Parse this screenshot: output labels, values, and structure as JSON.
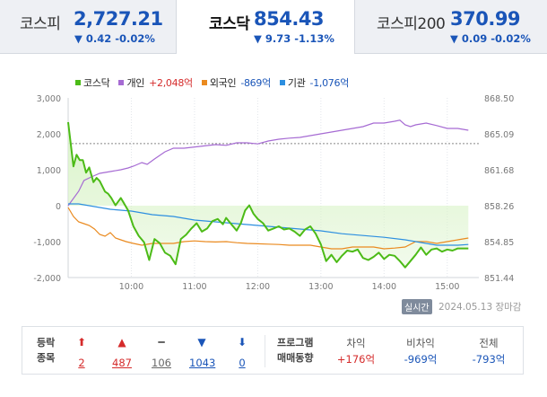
{
  "tabs": [
    {
      "name": "코스피",
      "value": "2,727.21",
      "change": "▼ 0.42 -0.02%",
      "active": false
    },
    {
      "name": "코스닥",
      "value": "854.43",
      "change": "▼ 9.73 -1.13%",
      "active": true
    },
    {
      "name": "코스피200",
      "value": "370.99",
      "change": "▼ 0.09 -0.02%",
      "active": false
    }
  ],
  "colors": {
    "down": "#1a55b8",
    "up": "#d52b2b",
    "kosdaq": "#4cbb17",
    "kosdaq_fill": "#d9f3c8",
    "individual": "#a66bd3",
    "foreign": "#ea8a1f",
    "institution": "#2d8fe0"
  },
  "legend": [
    {
      "label": "코스닥",
      "value": "",
      "color": "#4cbb17",
      "value_color": "#333"
    },
    {
      "label": "개인",
      "value": "+2,048억",
      "color": "#a66bd3",
      "value_color": "#d52b2b"
    },
    {
      "label": "외국인",
      "value": "-869억",
      "color": "#ea8a1f",
      "value_color": "#1a55b8"
    },
    {
      "label": "기관",
      "value": "-1,076억",
      "color": "#2d8fe0",
      "value_color": "#1a55b8"
    }
  ],
  "chart_data": {
    "type": "line",
    "x_ticks": [
      "10:00",
      "11:00",
      "12:00",
      "13:00",
      "14:00",
      "15:00"
    ],
    "x_tick_minutes": [
      60,
      120,
      180,
      240,
      300,
      360
    ],
    "x_range_minutes": [
      0,
      390
    ],
    "y_left_ticks": [
      "3,000",
      "2,000",
      "1,000",
      "0",
      "-1,000",
      "-2,000"
    ],
    "y_left_range": [
      -2000,
      3000
    ],
    "y_right_ticks": [
      "868.50",
      "865.09",
      "861.68",
      "858.26",
      "854.85",
      "851.44"
    ],
    "y_right_range": [
      851.44,
      868.5
    ],
    "reference_line": 864.16,
    "index_series": {
      "name": "코스닥",
      "axis": "right",
      "points": [
        [
          0,
          866.2
        ],
        [
          5,
          862.0
        ],
        [
          8,
          863.1
        ],
        [
          11,
          862.6
        ],
        [
          14,
          862.6
        ],
        [
          17,
          861.4
        ],
        [
          20,
          861.9
        ],
        [
          24,
          860.5
        ],
        [
          27,
          860.9
        ],
        [
          30,
          860.6
        ],
        [
          35,
          859.6
        ],
        [
          38,
          859.4
        ],
        [
          41,
          859.0
        ],
        [
          45,
          858.3
        ],
        [
          50,
          859.0
        ],
        [
          53,
          858.5
        ],
        [
          57,
          857.8
        ],
        [
          62,
          856.3
        ],
        [
          67,
          855.4
        ],
        [
          72,
          854.8
        ],
        [
          77,
          853.1
        ],
        [
          82,
          855.1
        ],
        [
          87,
          854.7
        ],
        [
          92,
          853.8
        ],
        [
          97,
          853.5
        ],
        [
          102,
          852.7
        ],
        [
          107,
          855.1
        ],
        [
          112,
          855.5
        ],
        [
          117,
          856.1
        ],
        [
          122,
          856.6
        ],
        [
          127,
          855.8
        ],
        [
          132,
          856.1
        ],
        [
          137,
          856.8
        ],
        [
          142,
          857.0
        ],
        [
          147,
          856.5
        ],
        [
          150,
          857.1
        ],
        [
          155,
          856.5
        ],
        [
          160,
          855.9
        ],
        [
          164,
          856.6
        ],
        [
          168,
          857.8
        ],
        [
          172,
          858.3
        ],
        [
          176,
          857.5
        ],
        [
          180,
          857.0
        ],
        [
          185,
          856.6
        ],
        [
          190,
          855.9
        ],
        [
          195,
          856.1
        ],
        [
          200,
          856.3
        ],
        [
          205,
          856.0
        ],
        [
          210,
          856.1
        ],
        [
          215,
          855.8
        ],
        [
          220,
          855.4
        ],
        [
          225,
          856.0
        ],
        [
          230,
          856.3
        ],
        [
          235,
          855.6
        ],
        [
          240,
          854.6
        ],
        [
          245,
          853.0
        ],
        [
          250,
          853.6
        ],
        [
          255,
          852.9
        ],
        [
          260,
          853.5
        ],
        [
          265,
          854.0
        ],
        [
          270,
          853.9
        ],
        [
          275,
          854.1
        ],
        [
          280,
          853.3
        ],
        [
          285,
          853.1
        ],
        [
          290,
          853.4
        ],
        [
          295,
          853.8
        ],
        [
          300,
          853.2
        ],
        [
          305,
          853.6
        ],
        [
          310,
          853.5
        ],
        [
          315,
          853.0
        ],
        [
          320,
          852.4
        ],
        [
          325,
          853.0
        ],
        [
          330,
          853.6
        ],
        [
          335,
          854.3
        ],
        [
          340,
          853.6
        ],
        [
          345,
          854.1
        ],
        [
          350,
          854.2
        ],
        [
          355,
          853.9
        ],
        [
          360,
          854.1
        ],
        [
          365,
          854.0
        ],
        [
          370,
          854.2
        ],
        [
          375,
          854.2
        ],
        [
          380,
          854.2
        ]
      ]
    },
    "series": [
      {
        "name": "개인",
        "axis": "left",
        "points": [
          [
            0,
            0
          ],
          [
            10,
            400
          ],
          [
            15,
            700
          ],
          [
            22,
            800
          ],
          [
            30,
            900
          ],
          [
            40,
            950
          ],
          [
            50,
            1000
          ],
          [
            57,
            1050
          ],
          [
            62,
            1100
          ],
          [
            70,
            1200
          ],
          [
            75,
            1150
          ],
          [
            82,
            1300
          ],
          [
            92,
            1500
          ],
          [
            100,
            1600
          ],
          [
            110,
            1600
          ],
          [
            125,
            1650
          ],
          [
            140,
            1700
          ],
          [
            150,
            1680
          ],
          [
            160,
            1750
          ],
          [
            170,
            1750
          ],
          [
            180,
            1720
          ],
          [
            190,
            1800
          ],
          [
            200,
            1850
          ],
          [
            210,
            1880
          ],
          [
            220,
            1900
          ],
          [
            230,
            1950
          ],
          [
            240,
            2000
          ],
          [
            250,
            2050
          ],
          [
            260,
            2100
          ],
          [
            270,
            2150
          ],
          [
            280,
            2200
          ],
          [
            290,
            2300
          ],
          [
            300,
            2300
          ],
          [
            310,
            2350
          ],
          [
            315,
            2380
          ],
          [
            320,
            2250
          ],
          [
            325,
            2200
          ],
          [
            330,
            2250
          ],
          [
            340,
            2300
          ],
          [
            350,
            2230
          ],
          [
            360,
            2150
          ],
          [
            370,
            2150
          ],
          [
            380,
            2100
          ]
        ]
      },
      {
        "name": "외국인",
        "axis": "left",
        "points": [
          [
            0,
            -50
          ],
          [
            5,
            -300
          ],
          [
            10,
            -450
          ],
          [
            15,
            -500
          ],
          [
            20,
            -550
          ],
          [
            25,
            -650
          ],
          [
            30,
            -800
          ],
          [
            35,
            -850
          ],
          [
            40,
            -750
          ],
          [
            45,
            -900
          ],
          [
            50,
            -950
          ],
          [
            55,
            -1000
          ],
          [
            62,
            -1050
          ],
          [
            70,
            -1100
          ],
          [
            80,
            -1050
          ],
          [
            90,
            -1050
          ],
          [
            100,
            -1050
          ],
          [
            110,
            -1000
          ],
          [
            120,
            -980
          ],
          [
            130,
            -1000
          ],
          [
            140,
            -1010
          ],
          [
            150,
            -1000
          ],
          [
            160,
            -1030
          ],
          [
            170,
            -1050
          ],
          [
            180,
            -1060
          ],
          [
            190,
            -1070
          ],
          [
            200,
            -1080
          ],
          [
            210,
            -1100
          ],
          [
            220,
            -1100
          ],
          [
            230,
            -1100
          ],
          [
            240,
            -1150
          ],
          [
            250,
            -1200
          ],
          [
            260,
            -1200
          ],
          [
            270,
            -1150
          ],
          [
            280,
            -1150
          ],
          [
            290,
            -1150
          ],
          [
            300,
            -1200
          ],
          [
            310,
            -1180
          ],
          [
            320,
            -1150
          ],
          [
            330,
            -1000
          ],
          [
            340,
            -1000
          ],
          [
            350,
            -1050
          ],
          [
            360,
            -1000
          ],
          [
            370,
            -950
          ],
          [
            380,
            -900
          ]
        ]
      },
      {
        "name": "기관",
        "axis": "left",
        "points": [
          [
            0,
            50
          ],
          [
            10,
            50
          ],
          [
            20,
            0
          ],
          [
            40,
            -100
          ],
          [
            60,
            -150
          ],
          [
            80,
            -250
          ],
          [
            100,
            -300
          ],
          [
            120,
            -400
          ],
          [
            140,
            -450
          ],
          [
            160,
            -500
          ],
          [
            180,
            -550
          ],
          [
            200,
            -600
          ],
          [
            220,
            -650
          ],
          [
            240,
            -700
          ],
          [
            260,
            -780
          ],
          [
            280,
            -830
          ],
          [
            300,
            -880
          ],
          [
            320,
            -950
          ],
          [
            340,
            -1050
          ],
          [
            350,
            -1100
          ],
          [
            360,
            -1100
          ],
          [
            370,
            -1100
          ],
          [
            380,
            -1080
          ]
        ]
      }
    ]
  },
  "chart_meta": {
    "realtime_label": "실시간",
    "date_label": "2024.05.13 장마감"
  },
  "breadth": {
    "label_line1": "등락",
    "label_line2": "종목",
    "items": [
      {
        "icon": "⬆",
        "value": "2",
        "color": "#d52b2b",
        "name": "upper-limit"
      },
      {
        "icon": "▲",
        "value": "487",
        "color": "#d52b2b",
        "name": "rising"
      },
      {
        "icon": "━",
        "value": "106",
        "color": "#666666",
        "name": "unchanged"
      },
      {
        "icon": "▼",
        "value": "1043",
        "color": "#1a55b8",
        "name": "falling"
      },
      {
        "icon": "⬇",
        "value": "0",
        "color": "#1a55b8",
        "name": "lower-limit"
      }
    ]
  },
  "program": {
    "label_line1": "프로그램",
    "label_line2": "매매동향",
    "columns": [
      {
        "header": "차익",
        "value": "+176억",
        "color": "#d52b2b"
      },
      {
        "header": "비차익",
        "value": "-969억",
        "color": "#1a55b8"
      },
      {
        "header": "전체",
        "value": "-793억",
        "color": "#1a55b8"
      }
    ]
  }
}
